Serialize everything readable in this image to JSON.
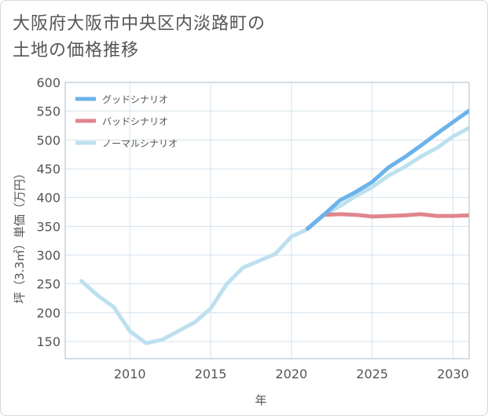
{
  "title": {
    "line1": "大阪府大阪市中央区内淡路町の",
    "line2": "土地の価格推移"
  },
  "chart_data": {
    "type": "line",
    "xlabel": "年",
    "ylabel": "坪（3.3㎡）単価（万円）",
    "xlim": [
      2006,
      2031
    ],
    "ylim": [
      120,
      600
    ],
    "xticks": [
      2010,
      2015,
      2020,
      2025,
      2030
    ],
    "yticks": [
      150,
      200,
      250,
      300,
      350,
      400,
      450,
      500,
      550,
      600
    ],
    "grid": true,
    "legend_position": "top-left",
    "series": [
      {
        "name": "グッドシナリオ",
        "color": "#6bb3ea",
        "x": [
          2021,
          2022,
          2023,
          2024,
          2025,
          2026,
          2027,
          2028,
          2029,
          2030,
          2031
        ],
        "y": [
          346,
          370,
          395,
          410,
          427,
          452,
          470,
          490,
          511,
          531,
          551
        ]
      },
      {
        "name": "バッドシナリオ",
        "color": "#e0868d",
        "x": [
          2021,
          2022,
          2023,
          2024,
          2025,
          2026,
          2027,
          2028,
          2029,
          2030,
          2031
        ],
        "y": [
          346,
          370,
          371,
          370,
          367,
          368,
          369,
          371,
          368,
          368,
          369
        ]
      },
      {
        "name": "ノーマルシナリオ",
        "color": "#bde0ef",
        "x": [
          2007,
          2008,
          2009,
          2010,
          2011,
          2012,
          2013,
          2014,
          2015,
          2016,
          2017,
          2018,
          2019,
          2020,
          2021,
          2022,
          2023,
          2024,
          2025,
          2026,
          2027,
          2028,
          2029,
          2030,
          2031
        ],
        "y": [
          255,
          230,
          210,
          168,
          147,
          153,
          168,
          183,
          207,
          250,
          278,
          290,
          302,
          332,
          345,
          370,
          385,
          403,
          418,
          438,
          453,
          471,
          486,
          506,
          521
        ]
      }
    ]
  }
}
